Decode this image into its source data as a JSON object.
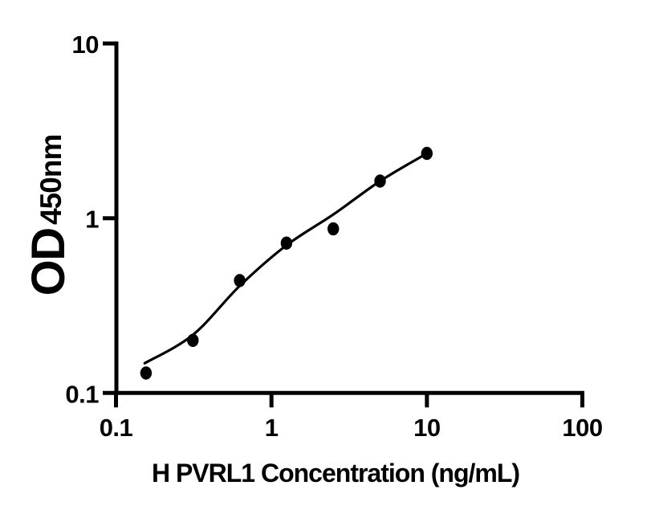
{
  "figure": {
    "background_color": "#ffffff",
    "ink_color": "#000000"
  },
  "chart_data": {
    "type": "scatter",
    "title": "",
    "xlabel": "H PVRL1 Concentration (ng/mL)",
    "ylabel_main": "OD",
    "ylabel_sub": "450nm",
    "x_scale": "log",
    "y_scale": "log",
    "xlim": [
      0.1,
      100
    ],
    "ylim": [
      0.1,
      10
    ],
    "grid": false,
    "legend": null,
    "x_ticks": [
      {
        "value": 0.1,
        "label": "0.1"
      },
      {
        "value": 1,
        "label": "1"
      },
      {
        "value": 10,
        "label": "10"
      },
      {
        "value": 100,
        "label": "100"
      }
    ],
    "y_ticks": [
      {
        "value": 10,
        "label": "10"
      },
      {
        "value": 1,
        "label": "1"
      },
      {
        "value": 0.1,
        "label": "0.1"
      }
    ],
    "series": [
      {
        "name": "standard-points",
        "marker": "filled-circle",
        "color": "#000000",
        "x": [
          0.156,
          0.3125,
          0.625,
          1.25,
          2.5,
          5,
          10
        ],
        "y": [
          0.13,
          0.2,
          0.44,
          0.72,
          0.87,
          1.63,
          2.35
        ]
      }
    ],
    "fit_curve": {
      "name": "fitted-standard-curve",
      "color": "#000000",
      "x": [
        0.153,
        0.3125,
        0.625,
        1.25,
        2.5,
        5,
        10
      ],
      "y": [
        0.148,
        0.215,
        0.41,
        0.7,
        1.05,
        1.63,
        2.35
      ]
    }
  }
}
